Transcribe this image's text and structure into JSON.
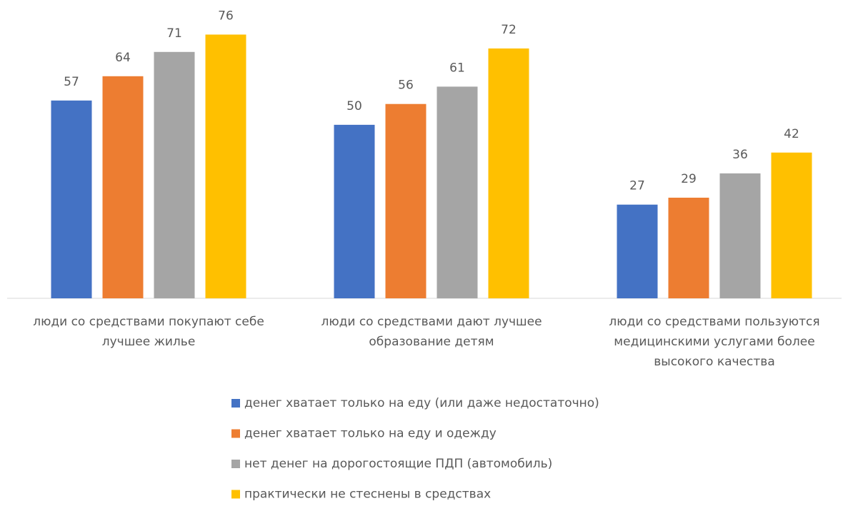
{
  "chart_data": {
    "type": "bar",
    "categories": [
      [
        "люди со средствами покупают себе",
        "лучшее жилье"
      ],
      [
        "люди со средствами дают лучшее",
        "образование детям"
      ],
      [
        "люди со средствами пользуются",
        "медицинскими услугами более",
        "высокого качества"
      ]
    ],
    "series": [
      {
        "name": "денег хватает только на еду (или даже недостаточно)",
        "color": "#4472c4",
        "values": [
          57,
          50,
          27
        ]
      },
      {
        "name": "денег хватает только на еду и одежду",
        "color": "#ed7d31",
        "values": [
          64,
          56,
          29
        ]
      },
      {
        "name": "нет денег на дорогостоящие ПДП (автомобиль)",
        "color": "#a5a5a5",
        "values": [
          71,
          61,
          36
        ]
      },
      {
        "name": "практически не стеснены в средствах",
        "color": "#ffc000",
        "values": [
          76,
          72,
          42
        ]
      }
    ],
    "ylim": [
      0,
      80
    ],
    "legend": "bottom"
  }
}
